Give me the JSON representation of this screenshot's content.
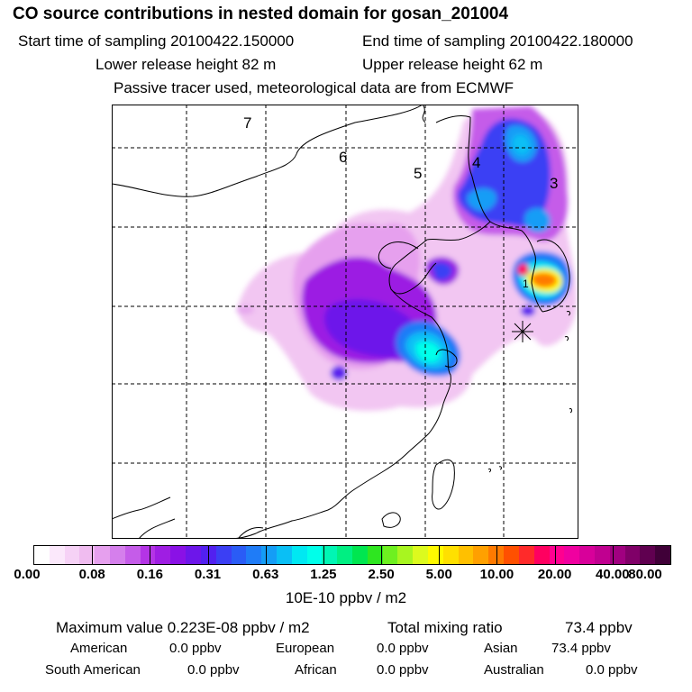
{
  "header": {
    "title": "CO  source contributions in nested domain for gosan_201004",
    "start_label": "Start time of sampling 20100422.150000",
    "end_label": "End time of sampling 20100422.180000",
    "lower_label": "Lower release height   82 m",
    "upper_label": "Upper release height   62 m",
    "tracer_note": "Passive tracer used, meteorological data are from ECMWF"
  },
  "map": {
    "day_labels": [
      "7",
      "6",
      "5",
      "4",
      "3",
      "1"
    ]
  },
  "colorbar": {
    "tick_labels": [
      "0.00",
      "0.08",
      "0.16",
      "0.31",
      "0.63",
      "1.25",
      "2.50",
      "5.00",
      "10.00",
      "20.00",
      "40.00",
      "80.00"
    ],
    "unit": "10E-10 ppbv / m2",
    "colors": [
      "#ffffff",
      "#fbe8fb",
      "#f6d2f6",
      "#f0bcf0",
      "#e6a0ee",
      "#d57fec",
      "#c55ce9",
      "#b434e6",
      "#9f1ee3",
      "#8a11e6",
      "#6d16ea",
      "#5220f0",
      "#3b3ff4",
      "#2a5cf6",
      "#1f7cf7",
      "#149df6",
      "#0abff5",
      "#00e8f2",
      "#00ffea",
      "#00f6b4",
      "#00ef82",
      "#00e650",
      "#2ee620",
      "#6ef020",
      "#a8f520",
      "#dcfa1e",
      "#fffa00",
      "#ffe000",
      "#ffc000",
      "#ffa000",
      "#ff7a00",
      "#ff5000",
      "#ff2a2a",
      "#ff0060",
      "#ff0090",
      "#f000a0",
      "#d8009a",
      "#c00090",
      "#a00080",
      "#800068",
      "#600050",
      "#400038"
    ]
  },
  "summary": {
    "max_label": "Maximum value  0.223E-08 ppbv / m2",
    "total_label": "Total mixing ratio",
    "total_value": "73.4 ppbv",
    "rows": [
      {
        "name": "American",
        "value": "0.0 ppbv"
      },
      {
        "name": "European",
        "value": "0.0 ppbv"
      },
      {
        "name": "Asian",
        "value": "73.4 ppbv"
      },
      {
        "name": "South American",
        "value": "0.0 ppbv"
      },
      {
        "name": "African",
        "value": "0.0 ppbv"
      },
      {
        "name": "Australian",
        "value": "0.0 ppbv"
      }
    ]
  }
}
